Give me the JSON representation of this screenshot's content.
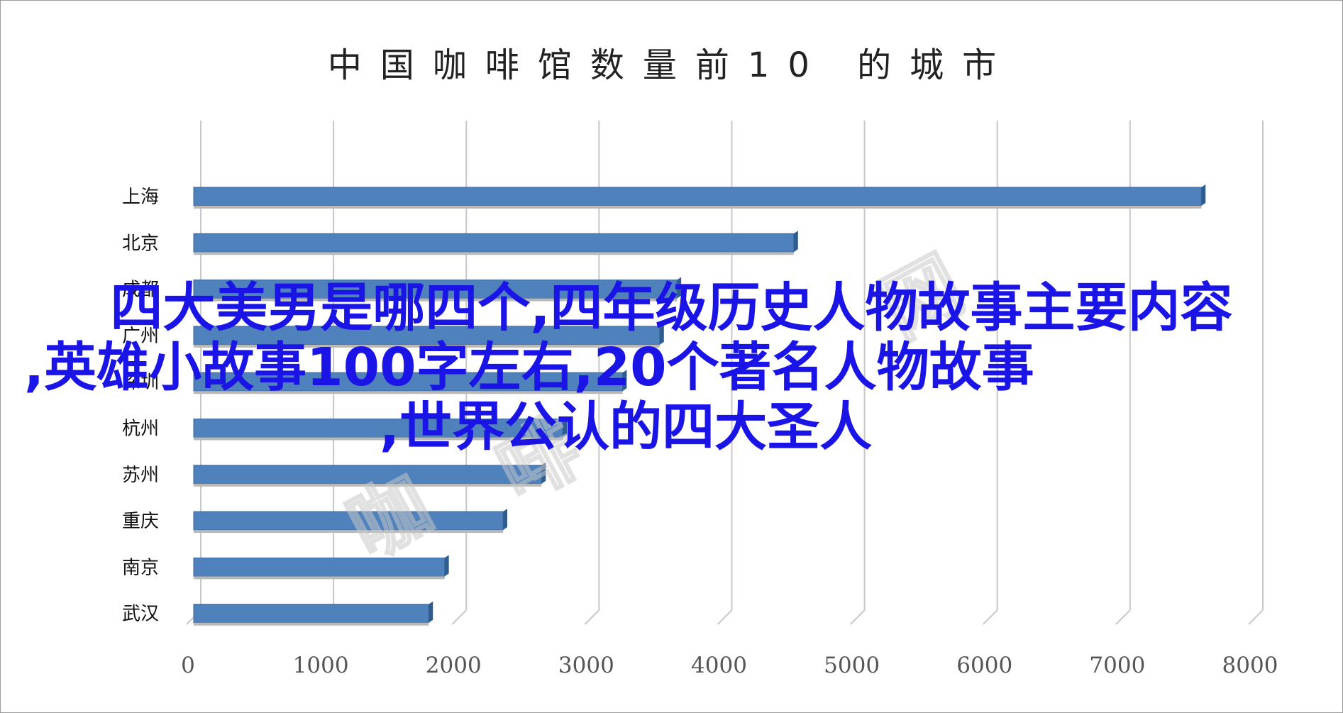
{
  "chart_data": {
    "type": "bar",
    "orientation": "horizontal",
    "title": "中国咖啡馆数量前10 的城市",
    "categories": [
      "上海",
      "北京",
      "成都",
      "广州",
      "深圳",
      "杭州",
      "苏州",
      "重庆",
      "南京",
      "武汉"
    ],
    "values": [
      7590,
      4520,
      3640,
      3510,
      3230,
      2780,
      2620,
      2330,
      1890,
      1770
    ],
    "xlim": [
      0,
      8000
    ],
    "xticks": [
      "0",
      "1000",
      "2000",
      "3000",
      "4000",
      "5000",
      "6000",
      "7000",
      "8000"
    ],
    "grid": "vertical",
    "legend": "none",
    "bar_color": "#4f81bd",
    "bar_edge_color": "#3a669b"
  },
  "overlay": {
    "line1": "四大美男是哪四个,四年级历史人物故事主要内容",
    "line2": ",英雄小故事100字左右,20个著名人物故事",
    "line3": ",世界公认的四大圣人",
    "color": "#1a14e6"
  },
  "watermark": {
    "text1": "咖",
    "text2": "啡",
    "text3": "网"
  }
}
